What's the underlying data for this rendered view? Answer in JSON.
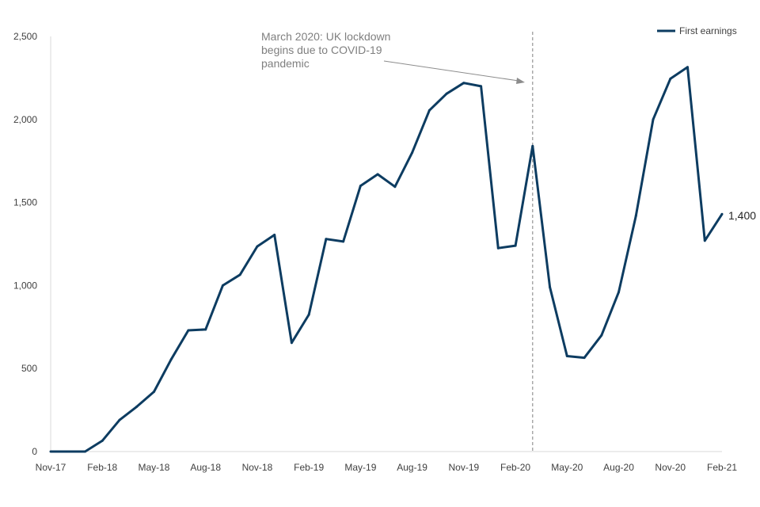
{
  "chart_data": {
    "type": "line",
    "title": "",
    "xlabel": "",
    "ylabel": "",
    "ylim": [
      0,
      2500
    ],
    "yticks": [
      0,
      500,
      1000,
      1500,
      2000,
      2500
    ],
    "ytick_labels": [
      "0",
      "500",
      "1,000",
      "1,500",
      "2,000",
      "2,500"
    ],
    "grid": false,
    "legend_position": "top-right",
    "series_color": "#0d3c61",
    "annotation_color": "#7f7f7f",
    "x": [
      "Nov-17",
      "Dec-17",
      "Jan-18",
      "Feb-18",
      "Mar-18",
      "Apr-18",
      "May-18",
      "Jun-18",
      "Jul-18",
      "Aug-18",
      "Sep-18",
      "Oct-18",
      "Nov-18",
      "Dec-18",
      "Jan-19",
      "Feb-19",
      "Mar-19",
      "Apr-19",
      "May-19",
      "Jun-19",
      "Jul-19",
      "Aug-19",
      "Sep-19",
      "Oct-19",
      "Nov-19",
      "Dec-19",
      "Jan-20",
      "Feb-20",
      "Mar-20",
      "Apr-20",
      "May-20",
      "Jun-20",
      "Jul-20",
      "Aug-20",
      "Sep-20",
      "Oct-20",
      "Nov-20",
      "Dec-20",
      "Jan-21",
      "Feb-21"
    ],
    "xtick_labels": [
      "Nov-17",
      "Feb-18",
      "May-18",
      "Aug-18",
      "Nov-18",
      "Feb-19",
      "May-19",
      "Aug-19",
      "Nov-19",
      "Feb-20",
      "May-20",
      "Aug-20",
      "Nov-20",
      "Feb-21"
    ],
    "series": [
      {
        "name": "First earnings",
        "values": [
          0,
          0,
          0,
          65,
          190,
          270,
          360,
          555,
          730,
          735,
          1000,
          1065,
          1235,
          1305,
          655,
          825,
          1280,
          1265,
          1600,
          1670,
          1595,
          1800,
          2055,
          2155,
          2220,
          2200,
          1225,
          1240,
          1840,
          990,
          575,
          565,
          700,
          960,
          1420,
          2000,
          2245,
          2315,
          1270,
          1430
        ]
      }
    ],
    "end_label": "1,400",
    "annotation": {
      "lines": [
        "March 2020: UK lockdown",
        "begins due to COVID-19",
        "pandemic"
      ],
      "event_x": "Mar-20"
    }
  }
}
